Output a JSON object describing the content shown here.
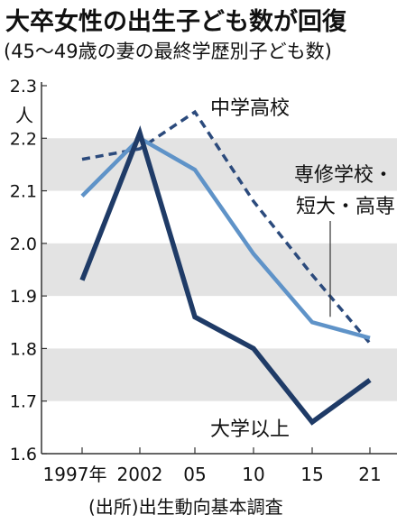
{
  "title": "大卒女性の出生子ども数が回復",
  "subtitle": "(45～49歳の妻の最終学歴別子ども数)",
  "source": "(出所)出生動向基本調査",
  "chart_data": {
    "type": "line",
    "x_tick_labels": [
      "1997年",
      "2002",
      "05",
      "10",
      "15",
      "21"
    ],
    "x": [
      1997,
      2002,
      2005,
      2010,
      2015,
      2021
    ],
    "y_unit": "人",
    "y_ticks": [
      1.6,
      1.7,
      1.8,
      1.9,
      2.0,
      2.1,
      2.2,
      2.3
    ],
    "y_tick_labels": [
      "1.6",
      "1.7",
      "1.8",
      "1.9",
      "2.0",
      "2.1",
      "2.2",
      "2.3"
    ],
    "ylim": [
      1.6,
      2.3
    ],
    "grid": "alternating horizontal bands",
    "series": [
      {
        "name": "中学高校",
        "values": [
          2.16,
          2.18,
          2.25,
          2.08,
          1.94,
          1.81
        ],
        "color": "#2b4a7c",
        "style": "dashed"
      },
      {
        "name": "専修学校・短大・高専",
        "values": [
          2.09,
          2.2,
          2.14,
          1.98,
          1.85,
          1.82
        ],
        "color": "#5f93c8",
        "style": "solid"
      },
      {
        "name": "大学以上",
        "values": [
          1.93,
          2.21,
          1.86,
          1.8,
          1.66,
          1.74
        ],
        "color": "#1f3b67",
        "style": "solid-thick"
      }
    ],
    "band_color": "#e3e3e3"
  }
}
